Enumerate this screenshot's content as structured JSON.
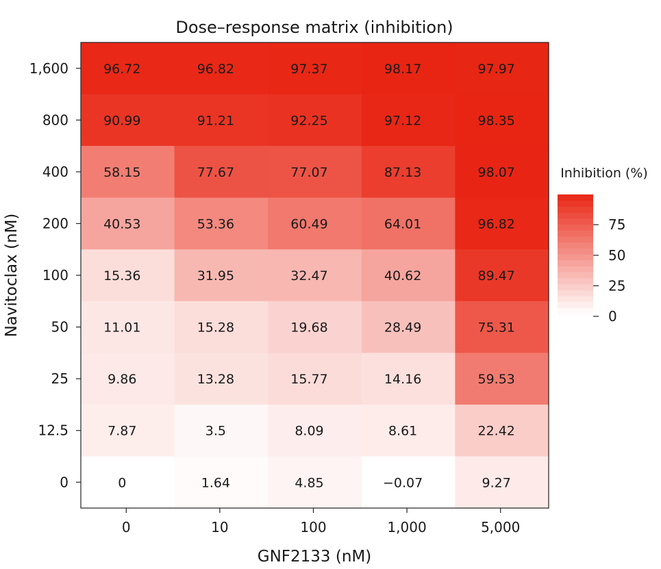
{
  "chart_data": {
    "type": "heatmap",
    "title": "Dose–response matrix (inhibition)",
    "xlabel": "GNF2133 (nM)",
    "ylabel": "Navitoclax (nM)",
    "x_categories": [
      "0",
      "10",
      "100",
      "1,000",
      "5,000"
    ],
    "y_categories": [
      "1,600",
      "800",
      "400",
      "200",
      "100",
      "50",
      "25",
      "12.5",
      "0"
    ],
    "values": [
      [
        96.72,
        96.82,
        97.37,
        98.17,
        97.97
      ],
      [
        90.99,
        91.21,
        92.25,
        97.12,
        98.35
      ],
      [
        58.15,
        77.67,
        77.07,
        87.13,
        98.07
      ],
      [
        40.53,
        53.36,
        60.49,
        64.01,
        96.82
      ],
      [
        15.36,
        31.95,
        32.47,
        40.62,
        89.47
      ],
      [
        11.01,
        15.28,
        19.68,
        28.49,
        75.31
      ],
      [
        9.86,
        13.28,
        15.77,
        14.16,
        59.53
      ],
      [
        7.87,
        3.5,
        8.09,
        8.61,
        22.42
      ],
      [
        0,
        1.64,
        4.85,
        -0.07,
        9.27
      ]
    ],
    "value_labels": [
      [
        "96.72",
        "96.82",
        "97.37",
        "98.17",
        "97.97"
      ],
      [
        "90.99",
        "91.21",
        "92.25",
        "97.12",
        "98.35"
      ],
      [
        "58.15",
        "77.67",
        "77.07",
        "87.13",
        "98.07"
      ],
      [
        "40.53",
        "53.36",
        "60.49",
        "64.01",
        "96.82"
      ],
      [
        "15.36",
        "31.95",
        "32.47",
        "40.62",
        "89.47"
      ],
      [
        "11.01",
        "15.28",
        "19.68",
        "28.49",
        "75.31"
      ],
      [
        "9.86",
        "13.28",
        "15.77",
        "14.16",
        "59.53"
      ],
      [
        "7.87",
        "3.5",
        "8.09",
        "8.61",
        "22.42"
      ],
      [
        "0",
        "1.64",
        "4.85",
        "−0.07",
        "9.27"
      ]
    ],
    "colorbar": {
      "title": "Inhibition (%)",
      "range": [
        0,
        100
      ],
      "ticks": [
        0,
        25,
        50,
        75
      ],
      "tick_labels": [
        "0",
        "25",
        "50",
        "75"
      ],
      "color_low": "#ffffff",
      "color_high": "#e8210f"
    },
    "legend_position": "right"
  }
}
